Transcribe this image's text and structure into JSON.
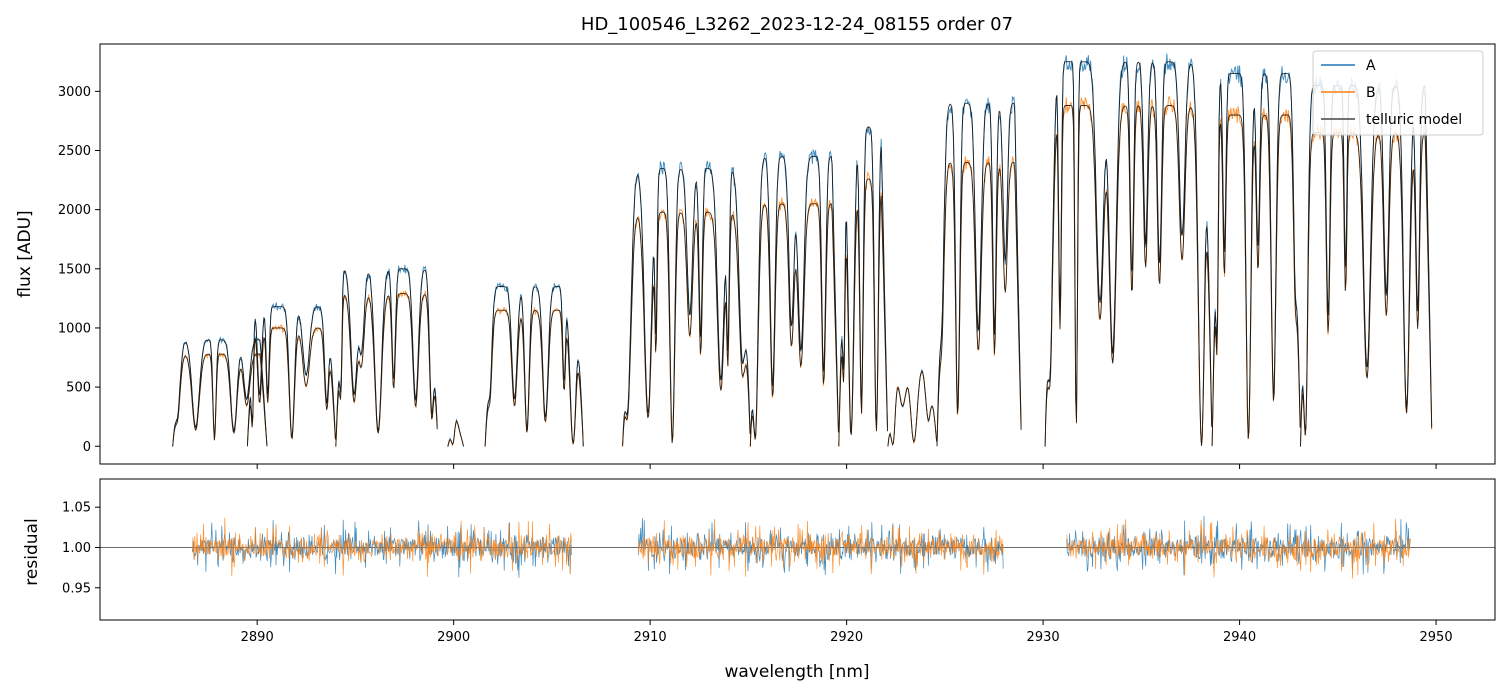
{
  "chart_data": [
    {
      "type": "line",
      "panel": "top",
      "title": "HD_100546_L3262_2023-12-24_08155  order 07",
      "xlabel": "",
      "ylabel": "flux [ADU]",
      "xlim": [
        2882,
        2953
      ],
      "ylim": [
        -150,
        3400
      ],
      "x_ticks": [
        2890,
        2900,
        2910,
        2920,
        2930,
        2940,
        2950
      ],
      "y_ticks": [
        0,
        500,
        1000,
        1500,
        2000,
        2500,
        3000
      ],
      "y_tick_labels": [
        "0",
        "500",
        "1000",
        "1500",
        "2000",
        "2500",
        "3000"
      ],
      "legend": {
        "position": "top-right",
        "entries": [
          "A",
          "B",
          "telluric model"
        ]
      },
      "segments": [
        {
          "start": 2885.7,
          "end": 2890.5,
          "A_level": 900,
          "B_level": 780
        },
        {
          "start": 2889.5,
          "end": 2894.0,
          "A_level": 1180,
          "B_level": 1000
        },
        {
          "start": 2894.0,
          "end": 2899.2,
          "A_level": 1500,
          "B_level": 1290
        },
        {
          "start": 2899.7,
          "end": 2900.5,
          "A_level": 230,
          "B_level": 230
        },
        {
          "start": 2901.6,
          "end": 2906.6,
          "A_level": 1350,
          "B_level": 1150
        },
        {
          "start": 2908.6,
          "end": 2915.1,
          "A_level": 2350,
          "B_level": 1980
        },
        {
          "start": 2915.1,
          "end": 2919.6,
          "A_level": 2450,
          "B_level": 2050
        },
        {
          "start": 2919.6,
          "end": 2922.1,
          "A_level": 2700,
          "B_level": 2260
        },
        {
          "start": 2922.1,
          "end": 2924.6,
          "A_level": 700,
          "B_level": 700
        },
        {
          "start": 2924.6,
          "end": 2928.9,
          "A_level": 2900,
          "B_level": 2400
        },
        {
          "start": 2930.1,
          "end": 2938.6,
          "A_level": 3250,
          "B_level": 2880
        },
        {
          "start": 2938.6,
          "end": 2943.1,
          "A_level": 3150,
          "B_level": 2800
        },
        {
          "start": 2943.1,
          "end": 2949.8,
          "A_level": 3050,
          "B_level": 2650
        }
      ],
      "series": [
        {
          "name": "A",
          "color": "#1f77b4"
        },
        {
          "name": "B",
          "color": "#ff7f0e"
        },
        {
          "name": "telluric model",
          "color": "#000000"
        }
      ]
    },
    {
      "type": "line",
      "panel": "bottom",
      "xlabel": "wavelength [nm]",
      "ylabel": "residual",
      "xlim": [
        2882,
        2953
      ],
      "ylim": [
        0.91,
        1.085
      ],
      "x_ticks": [
        2890,
        2900,
        2910,
        2920,
        2930,
        2940,
        2950
      ],
      "x_tick_labels": [
        "2890",
        "2900",
        "2910",
        "2920",
        "2930",
        "2940",
        "2950"
      ],
      "y_ticks": [
        0.95,
        1.0,
        1.05
      ],
      "y_tick_labels": [
        "0.95",
        "1.00",
        "1.05"
      ],
      "reference_line": 1.0,
      "residual_ranges": [
        [
          2886.7,
          2906.0
        ],
        [
          2909.4,
          2928.0
        ],
        [
          2931.2,
          2948.7
        ]
      ],
      "series": [
        {
          "name": "A",
          "color": "#1f77b4"
        },
        {
          "name": "B",
          "color": "#ff7f0e"
        }
      ]
    }
  ]
}
